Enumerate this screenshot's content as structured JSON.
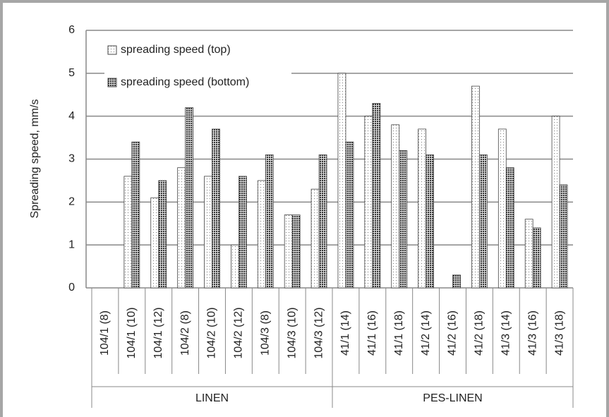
{
  "chart_data": {
    "type": "bar",
    "y_label": "Spreading speed, mm/s",
    "categories": [
      "104/1 (8)",
      "104/1 (10)",
      "104/1 (12)",
      "104/2 (8)",
      "104/2 (10)",
      "104/2 (12)",
      "104/3 (8)",
      "104/3 (10)",
      "104/3 (12)",
      "41/1 (14)",
      "41/1 (16)",
      "41/1 (18)",
      "41/2 (14)",
      "41/2 (16)",
      "41/2 (18)",
      "41/3 (14)",
      "41/3 (16)",
      "41/3 (18)"
    ],
    "category_groups": [
      {
        "name": "LINEN",
        "size": 9
      },
      {
        "name": "PES-LINEN",
        "size": 9
      }
    ],
    "series": [
      {
        "name": "spreading speed (top)",
        "color": "#ffffff",
        "pattern": "dots",
        "values": [
          null,
          2.6,
          2.1,
          2.8,
          2.6,
          1.0,
          2.5,
          1.7,
          2.3,
          5.0,
          4.0,
          3.8,
          3.7,
          null,
          4.7,
          3.7,
          1.6,
          4.0
        ]
      },
      {
        "name": "spreading speed (bottom)",
        "color": "#555555",
        "pattern": "checker",
        "values": [
          null,
          3.4,
          2.5,
          4.2,
          3.7,
          2.6,
          3.1,
          1.7,
          3.1,
          3.4,
          4.3,
          3.2,
          3.1,
          0.3,
          3.1,
          2.8,
          1.4,
          2.4
        ]
      }
    ],
    "ylim": [
      0,
      6
    ],
    "yticks": [
      0,
      1,
      2,
      3,
      4,
      5,
      6
    ],
    "grid": true,
    "legend": "upper left"
  }
}
